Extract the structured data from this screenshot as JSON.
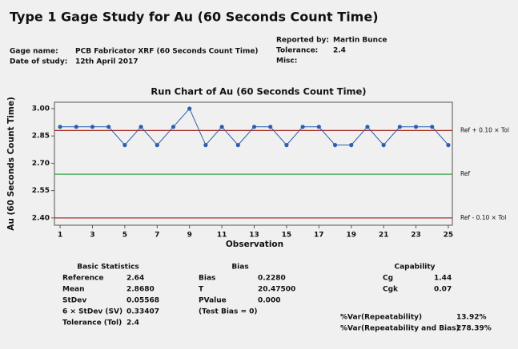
{
  "header": {
    "title": "Type 1 Gage Study for Au (60 Seconds Count Time)",
    "left_fields": [
      {
        "label": "Gage name:",
        "value": "PCB Fabricator XRF (60 Seconds Count Time)"
      },
      {
        "label": "Date of study:",
        "value": "12th April 2017"
      }
    ],
    "right_fields": [
      {
        "label": "Reported by:",
        "value": "Martin Bunce"
      },
      {
        "label": "Tolerance:",
        "value": "2.4"
      },
      {
        "label": "Misc:"
      }
    ]
  },
  "chart_data": {
    "type": "line",
    "title": "Run Chart of Au (60 Seconds Count Time)",
    "xlabel": "Observation",
    "ylabel": "Au (60 Seconds Count Time)",
    "x": [
      1,
      2,
      3,
      4,
      5,
      6,
      7,
      8,
      9,
      10,
      11,
      12,
      13,
      14,
      15,
      16,
      17,
      18,
      19,
      20,
      21,
      22,
      23,
      24,
      25
    ],
    "series": [
      {
        "color": "#2b5fab",
        "values": [
          2.9,
          2.9,
          2.9,
          2.9,
          2.8,
          2.9,
          2.8,
          2.9,
          3.0,
          2.8,
          2.9,
          2.8,
          2.9,
          2.9,
          2.8,
          2.9,
          2.9,
          2.8,
          2.8,
          2.9,
          2.8,
          2.9,
          2.9,
          2.9,
          2.8
        ]
      }
    ],
    "reference_lines": [
      {
        "value": 2.88,
        "label": "Ref + 0.10 × Tol",
        "color": "#a8322d"
      },
      {
        "value": 2.64,
        "label": "Ref",
        "color": "#3aa14a"
      },
      {
        "value": 2.4,
        "label": "Ref - 0.10 × Tol",
        "color": "#a8322d"
      }
    ],
    "xlim": [
      0.65,
      25.25
    ],
    "xticks": [
      1,
      3,
      5,
      7,
      9,
      11,
      13,
      15,
      17,
      19,
      21,
      23,
      25
    ],
    "ylim": [
      2.36,
      3.035
    ],
    "yticks": [
      {
        "value": 2.4,
        "label": "2.40"
      },
      {
        "value": 2.55,
        "label": "2.55"
      },
      {
        "value": 2.7,
        "label": "2.70"
      },
      {
        "value": 2.85,
        "label": "2.85"
      },
      {
        "value": 3.0,
        "label": "3.00"
      }
    ]
  },
  "stats": {
    "basic": {
      "title": "Basic Statistics",
      "rows": [
        [
          "Reference",
          "2.64"
        ],
        [
          "Mean",
          "2.8680"
        ],
        [
          "StDev",
          "0.05568"
        ],
        [
          "6 × StDev (SV)",
          "0.33407"
        ],
        [
          "Tolerance (Tol)",
          "2.4"
        ]
      ]
    },
    "bias": {
      "title": "Bias",
      "rows": [
        [
          "Bias",
          "0.2280"
        ],
        [
          "T",
          "20.47500"
        ],
        [
          "PValue",
          "0.000"
        ],
        [
          "(Test Bias = 0)"
        ]
      ]
    },
    "capability": {
      "title": "Capability",
      "rows": [
        [
          "Cg",
          "1.44"
        ],
        [
          "Cgk",
          "0.07"
        ]
      ]
    },
    "var": {
      "rows": [
        [
          "%Var(Repeatability)",
          "13.92%"
        ],
        [
          "%Var(Repeatability and Bias)",
          "278.39%"
        ]
      ]
    }
  }
}
